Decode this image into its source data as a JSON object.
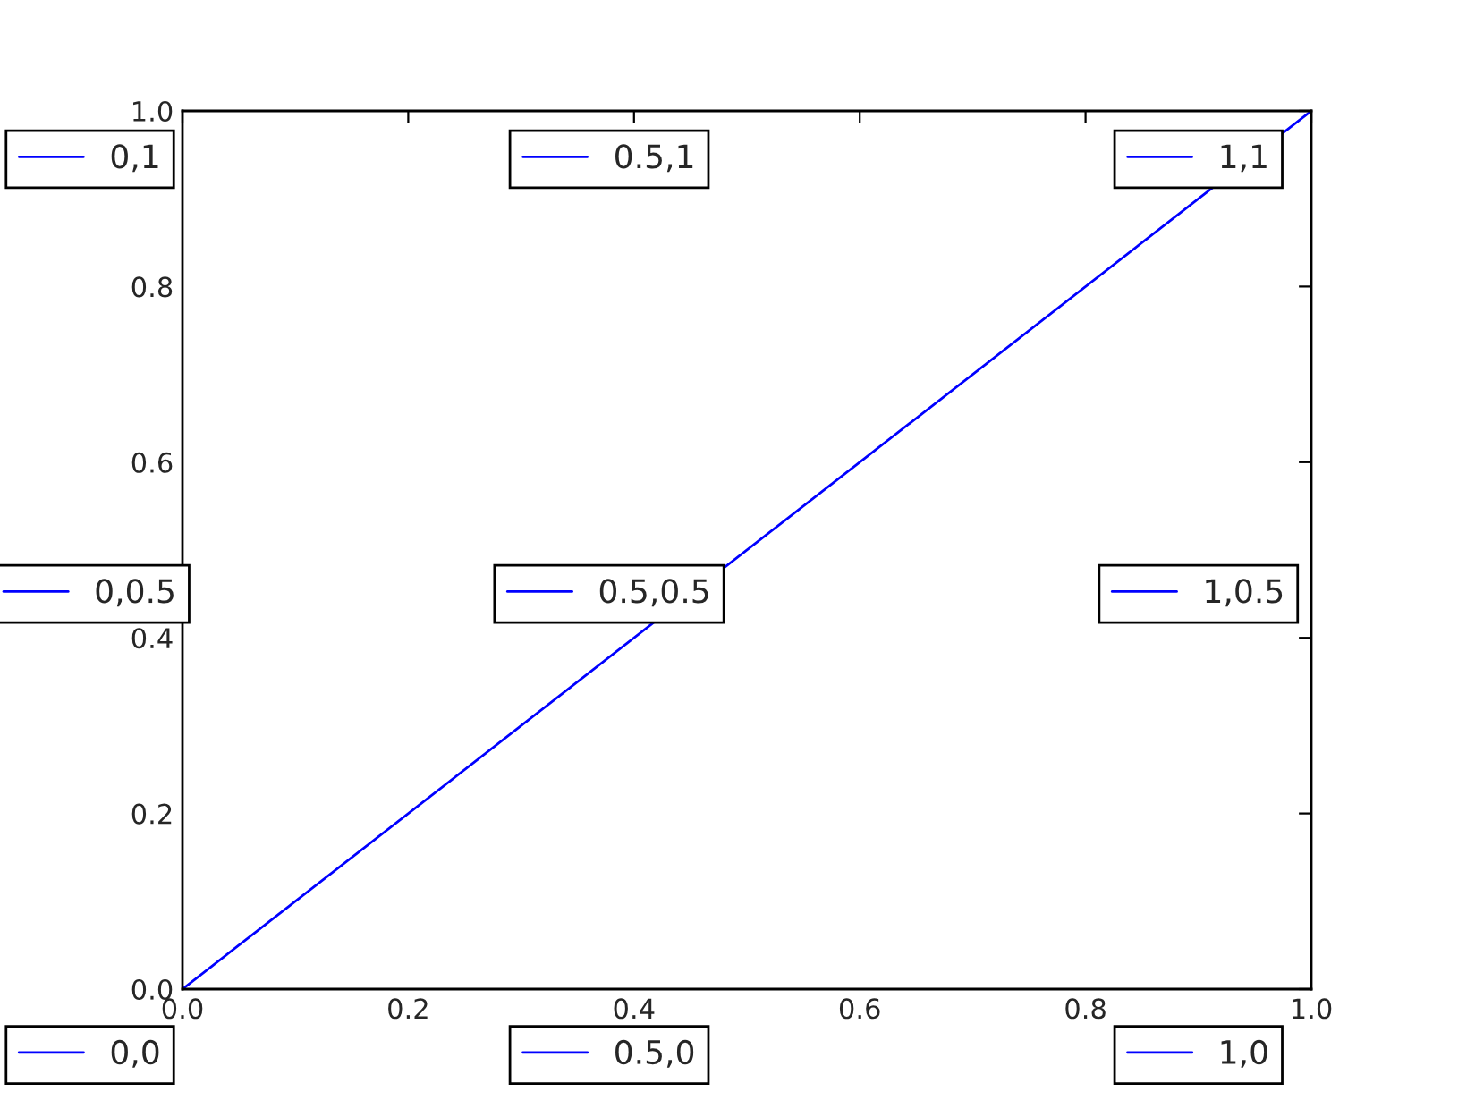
{
  "chart_data": {
    "type": "line",
    "x": [
      0,
      1
    ],
    "series": [
      {
        "color": "#0000ff",
        "values": [
          0,
          1
        ]
      }
    ],
    "xlim": [
      0,
      1
    ],
    "ylim": [
      0,
      1
    ],
    "xticks": [
      {
        "value": 0,
        "label": "0.0"
      },
      {
        "value": 0.2,
        "label": "0.2"
      },
      {
        "value": 0.4,
        "label": "0.4"
      },
      {
        "value": 0.6,
        "label": "0.6"
      },
      {
        "value": 0.8,
        "label": "0.8"
      },
      {
        "value": 1,
        "label": "1.0"
      }
    ],
    "yticks": [
      {
        "value": 0,
        "label": "0.0"
      },
      {
        "value": 0.2,
        "label": "0.2"
      },
      {
        "value": 0.4,
        "label": "0.4"
      },
      {
        "value": 0.6,
        "label": "0.6"
      },
      {
        "value": 0.8,
        "label": "0.8"
      },
      {
        "value": 1,
        "label": "1.0"
      }
    ],
    "grid": false,
    "annotations": [
      "0,0",
      "0,0.5",
      "0,1",
      "0.5,0",
      "0.5,0.5",
      "0.5,1",
      "1,0",
      "1,0.5",
      "1,1"
    ]
  }
}
